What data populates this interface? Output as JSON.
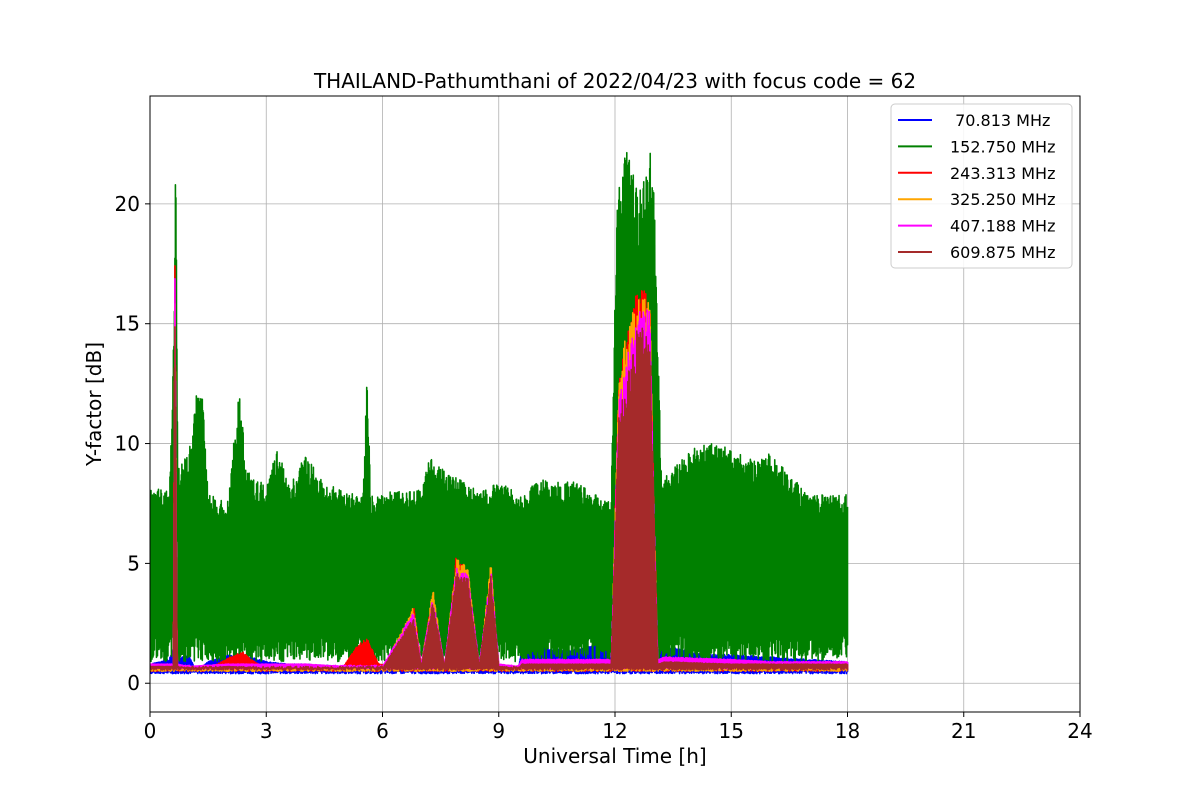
{
  "chart_data": {
    "type": "line",
    "title": "THAILAND-Pathumthani of 2022/04/23 with focus code = 62",
    "xlabel": "Universal Time [h]",
    "ylabel": "Y-factor [dB]",
    "xlim": [
      0,
      24
    ],
    "ylim": [
      -1.2,
      24.5
    ],
    "xticks": [
      0,
      3,
      6,
      9,
      12,
      15,
      18,
      21,
      24
    ],
    "xtick_labels": [
      "0",
      "3",
      "6",
      "9",
      "12",
      "15",
      "18",
      "21",
      "24"
    ],
    "yticks": [
      0,
      5,
      10,
      15,
      20
    ],
    "ytick_labels": [
      "0",
      "5",
      "10",
      "15",
      "20"
    ],
    "grid": true,
    "legend_position": "top-right",
    "series": [
      {
        "name": " 70.813 MHz",
        "color": "#0000ff",
        "x": [
          0,
          0.5,
          0.6,
          0.7,
          1.0,
          1.2,
          1.5,
          2.0,
          2.4,
          2.6,
          3.0,
          3.6,
          4.0,
          5.0,
          5.6,
          6.0,
          6.6,
          7.0,
          7.5,
          8.0,
          8.5,
          9.0,
          9.5,
          9.6,
          10.0,
          11.0,
          11.5,
          11.95,
          12.0,
          13.0,
          13.1,
          13.5,
          14.0,
          14.5,
          15.0,
          16.0,
          17.0,
          18.0
        ],
        "y": [
          0.8,
          1.0,
          1.5,
          1.0,
          1.2,
          0.5,
          0.9,
          1.2,
          1.0,
          1.1,
          0.9,
          0.8,
          0.8,
          0.7,
          0.8,
          0.6,
          0.5,
          0.5,
          0.6,
          0.6,
          0.6,
          0.5,
          0.6,
          1.4,
          1.5,
          1.4,
          1.6,
          1.5,
          1.0,
          1.0,
          1.4,
          1.5,
          1.3,
          1.2,
          1.2,
          1.1,
          1.0,
          0.9
        ]
      },
      {
        "name": "152.750 MHz",
        "color": "#008000",
        "x": [
          0,
          0.5,
          0.62,
          0.66,
          0.72,
          1.0,
          1.2,
          1.35,
          1.5,
          2.0,
          2.3,
          2.5,
          2.7,
          3.0,
          3.3,
          3.6,
          4.0,
          4.5,
          5.0,
          5.5,
          5.6,
          5.65,
          5.7,
          6.0,
          7.0,
          7.2,
          8.0,
          8.5,
          9.0,
          9.6,
          10.0,
          11.0,
          11.9,
          12.05,
          12.3,
          12.6,
          12.9,
          13.0,
          13.2,
          14.0,
          14.4,
          15.0,
          15.6,
          16.0,
          17.0,
          17.5,
          18.0
        ],
        "y": [
          8.2,
          8.0,
          15.0,
          23.5,
          9.0,
          9.6,
          12.2,
          12.2,
          8.0,
          7.5,
          12.2,
          9.0,
          8.5,
          8.3,
          9.8,
          8.2,
          9.5,
          8.4,
          8.0,
          7.8,
          12.8,
          10.5,
          7.8,
          8.0,
          8.1,
          9.4,
          8.5,
          8.0,
          8.4,
          7.9,
          8.5,
          8.4,
          7.5,
          20.3,
          22.3,
          20.5,
          22.2,
          21.5,
          8.5,
          9.8,
          10.1,
          9.8,
          9.3,
          9.7,
          7.8,
          7.9,
          7.9
        ]
      },
      {
        "name": "243.313 MHz",
        "color": "#ff0000",
        "x": [
          0,
          0.6,
          0.64,
          0.7,
          1.0,
          1.5,
          2.2,
          2.4,
          2.6,
          3.0,
          4.0,
          5.0,
          5.3,
          5.6,
          5.9,
          6.5,
          6.8,
          7.0,
          7.3,
          7.6,
          7.9,
          8.2,
          8.5,
          8.8,
          9.0,
          9.5,
          9.6,
          11.9,
          12.1,
          12.6,
          12.9,
          13.1,
          13.3,
          15.0,
          16.0,
          17.0,
          18.0
        ],
        "y": [
          0.6,
          0.7,
          18.9,
          0.6,
          0.5,
          0.6,
          1.2,
          1.3,
          1.0,
          0.6,
          0.7,
          0.7,
          1.5,
          1.9,
          0.8,
          0.7,
          3.4,
          0.8,
          3.8,
          0.6,
          5.3,
          4.7,
          0.6,
          5.0,
          0.7,
          0.5,
          0.9,
          0.8,
          13.0,
          16.8,
          16.2,
          0.9,
          1.0,
          0.9,
          0.8,
          0.9,
          0.8
        ]
      },
      {
        "name": "325.250 MHz",
        "color": "#ffa500",
        "x": [
          0,
          0.6,
          0.64,
          0.7,
          1.0,
          2.0,
          3.0,
          4.0,
          5.0,
          6.0,
          6.8,
          7.0,
          7.3,
          7.6,
          7.9,
          8.2,
          8.5,
          8.8,
          9.0,
          9.5,
          9.6,
          11.9,
          12.1,
          12.6,
          12.9,
          13.1,
          13.3,
          15.0,
          16.0,
          17.0,
          18.0
        ],
        "y": [
          0.5,
          0.6,
          18.7,
          0.6,
          0.5,
          0.5,
          0.6,
          0.6,
          0.6,
          0.6,
          3.2,
          0.7,
          4.0,
          0.6,
          5.2,
          4.9,
          0.6,
          5.1,
          0.6,
          0.5,
          0.9,
          0.8,
          13.3,
          16.5,
          16.0,
          0.8,
          0.9,
          0.8,
          0.7,
          0.7,
          0.7
        ]
      },
      {
        "name": "407.188 MHz",
        "color": "#ff00ff",
        "x": [
          0,
          0.6,
          0.64,
          0.7,
          1.0,
          2.0,
          3.0,
          4.0,
          5.0,
          6.0,
          6.8,
          7.0,
          7.3,
          7.6,
          7.9,
          8.2,
          8.5,
          8.8,
          9.0,
          9.5,
          9.6,
          11.9,
          12.1,
          12.6,
          12.9,
          13.1,
          13.3,
          15.0,
          16.0,
          17.0,
          18.0
        ],
        "y": [
          0.8,
          0.8,
          17.9,
          0.8,
          0.7,
          0.8,
          0.8,
          0.8,
          0.7,
          0.7,
          3.0,
          0.8,
          3.6,
          0.8,
          4.8,
          4.6,
          0.8,
          4.7,
          0.8,
          0.7,
          1.0,
          1.0,
          12.0,
          15.8,
          15.5,
          1.0,
          1.1,
          1.0,
          0.9,
          0.9,
          0.9
        ]
      },
      {
        "name": "609.875 MHz",
        "color": "#a52a2a",
        "x": [
          0,
          0.6,
          0.64,
          0.7,
          1.0,
          1.15,
          1.3,
          1.4,
          2.0,
          3.0,
          4.0,
          5.0,
          6.0,
          6.8,
          7.0,
          7.3,
          7.6,
          7.9,
          8.2,
          8.5,
          8.8,
          9.0,
          9.5,
          9.6,
          11.9,
          12.1,
          12.6,
          12.9,
          13.1,
          13.3,
          15.0,
          16.0,
          17.0,
          18.0
        ],
        "y": [
          0.7,
          0.7,
          17.7,
          0.7,
          0.6,
          0.0,
          0.0,
          0.6,
          0.7,
          0.6,
          0.6,
          0.6,
          0.6,
          2.8,
          0.7,
          3.5,
          0.7,
          4.6,
          4.4,
          0.7,
          4.6,
          0.7,
          0.6,
          0.8,
          0.8,
          11.5,
          15.0,
          14.8,
          0.8,
          0.9,
          0.8,
          0.8,
          0.8,
          0.8
        ]
      }
    ]
  }
}
